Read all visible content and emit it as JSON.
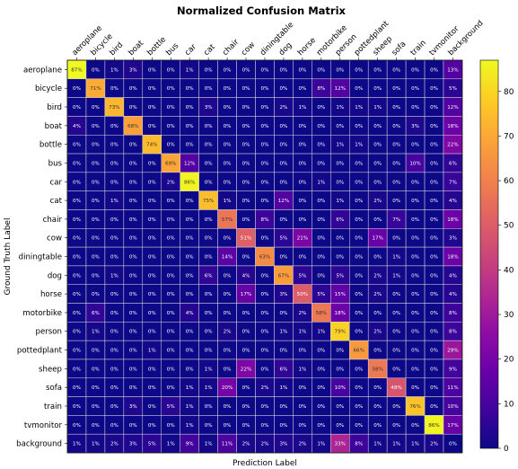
{
  "chart_data": {
    "type": "heatmap",
    "title": "Normalized Confusion Matrix",
    "xlabel": "Prediction Label",
    "ylabel": "Ground Truth Label",
    "colormap": "plasma",
    "color_range": [
      0,
      87
    ],
    "colorbar_ticks": [
      0,
      10,
      20,
      30,
      40,
      50,
      60,
      70,
      80
    ],
    "categories": [
      "aeroplane",
      "bicycle",
      "bird",
      "boat",
      "bottle",
      "bus",
      "car",
      "cat",
      "chair",
      "cow",
      "diningtable",
      "dog",
      "horse",
      "motorbike",
      "person",
      "pottedplant",
      "sheep",
      "sofa",
      "train",
      "tvmonitor",
      "background"
    ],
    "values": [
      [
        87,
        0,
        1,
        3,
        0,
        0,
        1,
        0,
        0,
        0,
        0,
        0,
        0,
        0,
        0,
        0,
        0,
        0,
        0,
        0,
        13
      ],
      [
        0,
        71,
        0,
        0,
        0,
        0,
        0,
        0,
        0,
        0,
        0,
        0,
        0,
        8,
        12,
        0,
        0,
        0,
        0,
        0,
        5
      ],
      [
        0,
        0,
        73,
        0,
        0,
        0,
        0,
        3,
        0,
        0,
        0,
        2,
        1,
        0,
        1,
        1,
        1,
        0,
        0,
        0,
        12
      ],
      [
        4,
        0,
        0,
        68,
        0,
        0,
        0,
        0,
        0,
        0,
        0,
        0,
        0,
        0,
        0,
        0,
        0,
        0,
        3,
        0,
        18
      ],
      [
        0,
        0,
        0,
        0,
        74,
        0,
        0,
        0,
        0,
        0,
        0,
        0,
        0,
        0,
        1,
        1,
        0,
        0,
        0,
        0,
        22
      ],
      [
        0,
        0,
        0,
        0,
        0,
        69,
        12,
        0,
        0,
        0,
        0,
        0,
        0,
        0,
        0,
        0,
        0,
        0,
        10,
        0,
        6
      ],
      [
        0,
        0,
        0,
        0,
        0,
        2,
        86,
        0,
        0,
        0,
        0,
        0,
        0,
        1,
        0,
        0,
        0,
        0,
        0,
        0,
        7
      ],
      [
        0,
        0,
        1,
        0,
        0,
        0,
        0,
        75,
        1,
        0,
        0,
        12,
        0,
        0,
        1,
        0,
        2,
        0,
        0,
        0,
        4
      ],
      [
        0,
        0,
        0,
        0,
        0,
        0,
        0,
        0,
        57,
        0,
        8,
        0,
        0,
        0,
        6,
        0,
        0,
        7,
        0,
        0,
        18
      ],
      [
        0,
        0,
        0,
        0,
        0,
        0,
        0,
        0,
        0,
        51,
        0,
        5,
        21,
        0,
        0,
        0,
        17,
        0,
        0,
        0,
        3
      ],
      [
        0,
        0,
        0,
        0,
        0,
        0,
        0,
        0,
        14,
        0,
        63,
        0,
        0,
        0,
        0,
        0,
        0,
        1,
        0,
        0,
        18
      ],
      [
        0,
        0,
        1,
        0,
        0,
        0,
        0,
        6,
        0,
        4,
        0,
        67,
        5,
        0,
        5,
        0,
        2,
        1,
        0,
        0,
        4
      ],
      [
        0,
        0,
        0,
        0,
        0,
        0,
        0,
        0,
        0,
        17,
        0,
        3,
        50,
        5,
        15,
        0,
        2,
        0,
        0,
        0,
        4
      ],
      [
        0,
        6,
        0,
        0,
        0,
        0,
        4,
        0,
        0,
        0,
        0,
        0,
        2,
        58,
        18,
        0,
        0,
        0,
        0,
        0,
        8
      ],
      [
        0,
        1,
        0,
        0,
        0,
        0,
        0,
        0,
        2,
        0,
        0,
        1,
        1,
        1,
        79,
        0,
        2,
        0,
        0,
        0,
        8
      ],
      [
        0,
        0,
        0,
        0,
        1,
        0,
        0,
        0,
        0,
        0,
        0,
        0,
        0,
        0,
        0,
        66,
        0,
        0,
        0,
        0,
        29
      ],
      [
        0,
        0,
        0,
        0,
        0,
        0,
        0,
        1,
        0,
        22,
        0,
        6,
        1,
        0,
        0,
        0,
        58,
        0,
        0,
        0,
        9
      ],
      [
        0,
        0,
        0,
        0,
        0,
        0,
        1,
        1,
        20,
        0,
        2,
        1,
        0,
        0,
        10,
        0,
        0,
        48,
        0,
        0,
        11
      ],
      [
        0,
        0,
        0,
        3,
        0,
        5,
        1,
        0,
        0,
        0,
        0,
        0,
        0,
        0,
        0,
        0,
        0,
        0,
        76,
        0,
        10
      ],
      [
        0,
        0,
        0,
        0,
        0,
        0,
        1,
        0,
        0,
        0,
        0,
        0,
        0,
        0,
        0,
        0,
        0,
        0,
        0,
        86,
        17
      ],
      [
        1,
        1,
        2,
        3,
        5,
        1,
        9,
        1,
        11,
        2,
        2,
        3,
        2,
        1,
        33,
        8,
        1,
        1,
        1,
        2,
        0
      ]
    ],
    "cell_format": "{v}%",
    "grid": true,
    "colorbar_position": "right"
  }
}
